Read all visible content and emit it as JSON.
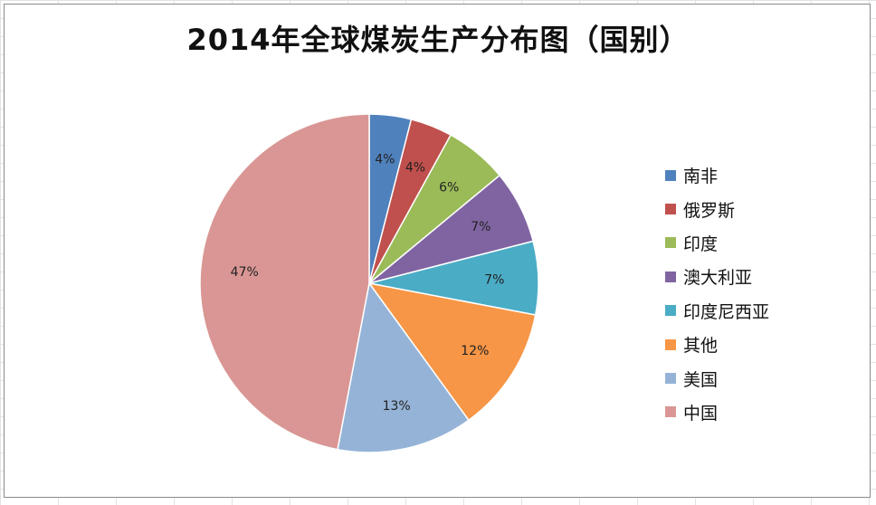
{
  "chart_data": {
    "type": "pie",
    "title": "2014年全球煤炭生产分布图（国别）",
    "legend_position": "right",
    "slices": [
      {
        "name": "南非",
        "value": 4,
        "label": "4%",
        "color": "#4F81BD"
      },
      {
        "name": "俄罗斯",
        "value": 4,
        "label": "4%",
        "color": "#C0504D"
      },
      {
        "name": "印度",
        "value": 6,
        "label": "6%",
        "color": "#9BBB59"
      },
      {
        "name": "澳大利亚",
        "value": 7,
        "label": "7%",
        "color": "#8064A2"
      },
      {
        "name": "印度尼西亚",
        "value": 7,
        "label": "7%",
        "color": "#4BACC6"
      },
      {
        "name": "其他",
        "value": 12,
        "label": "12%",
        "color": "#F79646"
      },
      {
        "name": "美国",
        "value": 13,
        "label": "13%",
        "color": "#95B3D7"
      },
      {
        "name": "中国",
        "value": 47,
        "label": "47%",
        "color": "#D99694"
      }
    ]
  }
}
